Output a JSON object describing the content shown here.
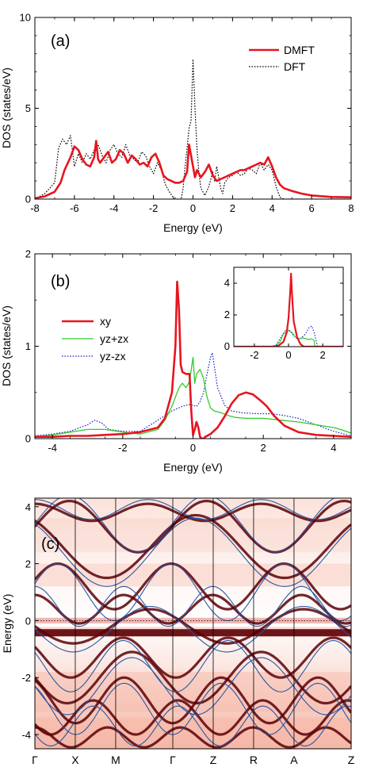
{
  "chart_data": [
    {
      "type": "line",
      "panel_label": "(a)",
      "xlabel": "Energy (eV)",
      "ylabel": "DOS (states/eV)",
      "xlim": [
        -8,
        8
      ],
      "ylim": [
        0,
        10
      ],
      "xticks": [
        -8,
        -6,
        -4,
        -2,
        0,
        2,
        4,
        6,
        8
      ],
      "yticks": [
        0,
        5,
        10
      ],
      "legend_position": "top-right",
      "series": [
        {
          "name": "DMFT",
          "color": "#e8141e",
          "style": "solid",
          "x": [
            -8,
            -7.5,
            -7,
            -6.7,
            -6.5,
            -6.2,
            -6.0,
            -5.8,
            -5.6,
            -5.4,
            -5.2,
            -5.0,
            -4.9,
            -4.8,
            -4.7,
            -4.5,
            -4.3,
            -4.1,
            -3.9,
            -3.7,
            -3.5,
            -3.3,
            -3.1,
            -2.9,
            -2.7,
            -2.5,
            -2.3,
            -2.1,
            -1.9,
            -1.7,
            -1.5,
            -1.3,
            -1.1,
            -0.9,
            -0.7,
            -0.5,
            -0.3,
            -0.2,
            -0.1,
            0,
            0.1,
            0.2,
            0.4,
            0.6,
            0.8,
            1.0,
            1.2,
            1.4,
            1.6,
            1.8,
            2.0,
            2.2,
            2.4,
            2.6,
            2.8,
            3.0,
            3.2,
            3.4,
            3.6,
            3.8,
            4.0,
            4.2,
            4.4,
            4.6,
            5.0,
            5.5,
            6.0,
            7.0,
            8.0
          ],
          "y": [
            0.05,
            0.15,
            0.4,
            0.9,
            1.6,
            2.3,
            2.9,
            2.7,
            2.2,
            1.9,
            1.8,
            2.3,
            3.2,
            2.2,
            2.0,
            2.3,
            2.6,
            2.0,
            2.2,
            2.7,
            2.5,
            2.0,
            2.4,
            2.2,
            1.9,
            2.0,
            1.8,
            2.3,
            2.5,
            2.0,
            1.3,
            1.1,
            1.0,
            0.9,
            0.9,
            1.0,
            1.5,
            3.0,
            2.4,
            1.8,
            1.2,
            1.6,
            1.2,
            1.5,
            1.9,
            1.3,
            1.0,
            1.1,
            1.2,
            1.3,
            1.4,
            1.5,
            1.6,
            1.6,
            1.7,
            1.8,
            1.9,
            2.0,
            1.9,
            2.3,
            1.8,
            1.2,
            0.8,
            0.6,
            0.45,
            0.3,
            0.2,
            0.12,
            0.1
          ]
        },
        {
          "name": "DFT",
          "color": "#000000",
          "style": "dotted",
          "x": [
            -8,
            -7.5,
            -7,
            -6.8,
            -6.6,
            -6.4,
            -6.2,
            -6.0,
            -5.8,
            -5.6,
            -5.4,
            -5.2,
            -5.0,
            -4.8,
            -4.6,
            -4.4,
            -4.2,
            -4.0,
            -3.8,
            -3.6,
            -3.4,
            -3.2,
            -3.0,
            -2.8,
            -2.6,
            -2.4,
            -2.2,
            -2.0,
            -1.8,
            -1.6,
            -1.4,
            -1.2,
            -1.0,
            -0.8,
            -0.6,
            -0.5,
            -0.4,
            -0.3,
            -0.2,
            -0.1,
            0,
            0.1,
            0.2,
            0.3,
            0.4,
            0.6,
            0.8,
            1.0,
            1.1,
            1.2,
            1.3,
            1.4,
            1.5,
            1.6,
            1.8,
            2.0,
            2.2,
            2.4,
            2.6,
            2.8,
            3.0,
            3.2,
            3.4,
            3.6,
            3.8,
            4.0,
            4.2,
            4.4,
            4.6,
            8.0
          ],
          "y": [
            0,
            0.3,
            0.9,
            2.8,
            3.3,
            3.0,
            3.5,
            1.8,
            2.5,
            2.0,
            2.5,
            2.2,
            2.7,
            3.0,
            2.4,
            2.0,
            2.7,
            3.0,
            2.5,
            2.3,
            3.0,
            2.4,
            2.2,
            2.0,
            2.6,
            2.4,
            1.8,
            1.4,
            2.0,
            1.6,
            0.8,
            0.4,
            0.1,
            0.0,
            0.0,
            0.6,
            1.8,
            2.8,
            3.9,
            4.3,
            7.7,
            5.0,
            2.8,
            1.4,
            0.6,
            0.2,
            0.7,
            1.5,
            1.0,
            1.8,
            1.2,
            0.6,
            0.3,
            0.9,
            1.2,
            1.3,
            1.5,
            1.3,
            1.4,
            1.7,
            1.6,
            1.4,
            2.0,
            1.6,
            1.9,
            1.6,
            0.7,
            0.1,
            0.0,
            0.0
          ]
        }
      ]
    },
    {
      "type": "line",
      "panel_label": "(b)",
      "xlabel": "Energy (eV)",
      "ylabel": "DOS (states/eV)",
      "xlim": [
        -4.5,
        4.5
      ],
      "ylim": [
        0,
        2
      ],
      "xticks": [
        -4,
        -2,
        0,
        2,
        4
      ],
      "yticks": [
        0,
        1,
        2
      ],
      "legend_position": "middle-left",
      "series": [
        {
          "name": "xy",
          "color": "#e8141e",
          "style": "solid",
          "x": [
            -4.5,
            -4,
            -3.5,
            -3,
            -2.5,
            -2,
            -1.5,
            -1,
            -0.8,
            -0.6,
            -0.5,
            -0.45,
            -0.4,
            -0.35,
            -0.3,
            -0.2,
            -0.1,
            -0.05,
            0,
            0.05,
            0.1,
            0.15,
            0.2,
            0.25,
            0.3,
            0.35,
            0.5,
            0.7,
            0.9,
            1.1,
            1.3,
            1.5,
            1.7,
            1.9,
            2.1,
            2.3,
            2.6,
            3.0,
            3.5,
            4.0,
            4.5
          ],
          "y": [
            0.02,
            0.02,
            0.03,
            0.03,
            0.04,
            0.05,
            0.07,
            0.12,
            0.22,
            0.5,
            1.0,
            1.7,
            1.4,
            0.8,
            0.72,
            0.7,
            0.7,
            0.3,
            0.04,
            0.1,
            0.18,
            0.12,
            0.02,
            0.0,
            0.0,
            0.02,
            0.05,
            0.12,
            0.24,
            0.38,
            0.47,
            0.5,
            0.48,
            0.42,
            0.35,
            0.25,
            0.14,
            0.07,
            0.04,
            0.03,
            0.02
          ]
        },
        {
          "name": "yz+zx",
          "color": "#2ecc2e",
          "style": "solid",
          "x": [
            -4.5,
            -4,
            -3.5,
            -3,
            -2.5,
            -2,
            -1.5,
            -1,
            -0.8,
            -0.6,
            -0.4,
            -0.3,
            -0.2,
            -0.1,
            0,
            0.05,
            0.1,
            0.2,
            0.3,
            0.4,
            0.5,
            0.6,
            0.8,
            1.0,
            1.2,
            1.5,
            2.0,
            2.5,
            3.0,
            3.5,
            4.0,
            4.2,
            4.5
          ],
          "y": [
            0.02,
            0.04,
            0.07,
            0.1,
            0.1,
            0.07,
            0.05,
            0.1,
            0.2,
            0.35,
            0.55,
            0.6,
            0.55,
            0.62,
            0.88,
            0.6,
            0.7,
            0.75,
            0.65,
            0.45,
            0.33,
            0.3,
            0.28,
            0.25,
            0.23,
            0.22,
            0.22,
            0.2,
            0.18,
            0.15,
            0.12,
            0.1,
            0.06
          ]
        },
        {
          "name": "yz-zx",
          "color": "#2222cc",
          "style": "dotted",
          "x": [
            -4.5,
            -4,
            -3.5,
            -3,
            -2.8,
            -2.6,
            -2.4,
            -2,
            -1.5,
            -1,
            -0.6,
            -0.3,
            -0.1,
            0,
            0.1,
            0.2,
            0.3,
            0.4,
            0.5,
            0.55,
            0.6,
            0.7,
            0.9,
            1.1,
            1.4,
            1.8,
            2.2,
            2.6,
            3.0,
            3.5,
            4.0,
            4.5
          ],
          "y": [
            0.03,
            0.05,
            0.08,
            0.15,
            0.2,
            0.17,
            0.1,
            0.08,
            0.08,
            0.2,
            0.3,
            0.35,
            0.37,
            0.36,
            0.35,
            0.4,
            0.5,
            0.7,
            0.88,
            0.93,
            0.8,
            0.55,
            0.36,
            0.3,
            0.28,
            0.27,
            0.27,
            0.25,
            0.22,
            0.15,
            0.08,
            0.03
          ]
        }
      ],
      "inset": {
        "xlim": [
          -3.2,
          3.2
        ],
        "ylim": [
          0,
          5
        ],
        "xticks": [
          -2,
          0,
          2
        ],
        "yticks": [
          0,
          2,
          4
        ],
        "series": [
          {
            "name": "xy",
            "color": "#e8141e",
            "style": "solid",
            "x": [
              -3.2,
              -1,
              -0.6,
              -0.3,
              -0.1,
              0,
              0.1,
              0.15,
              0.2,
              0.3,
              0.5,
              0.7,
              0.9,
              3.2
            ],
            "y": [
              0,
              0,
              0.05,
              0.3,
              0.9,
              1.8,
              3.5,
              4.6,
              3.4,
              1.6,
              0.6,
              0.15,
              0.0,
              0.0
            ]
          },
          {
            "name": "yz+zx",
            "color": "#2ecc2e",
            "style": "solid",
            "x": [
              -3.2,
              -0.8,
              -0.5,
              -0.3,
              -0.1,
              0,
              0.2,
              0.4,
              0.6,
              0.8,
              1.0,
              1.2,
              1.3,
              1.5,
              1.55,
              3.2
            ],
            "y": [
              0,
              0,
              0.3,
              0.8,
              0.95,
              1.0,
              0.9,
              0.6,
              0.5,
              0.55,
              0.5,
              0.45,
              0.5,
              0.4,
              0.0,
              0.0
            ]
          },
          {
            "name": "yz-zx",
            "color": "#2222cc",
            "style": "dotted",
            "x": [
              -3.2,
              -0.8,
              -0.5,
              -0.2,
              0,
              0.3,
              0.6,
              0.8,
              1.0,
              1.2,
              1.35,
              1.5,
              1.7,
              3.2
            ],
            "y": [
              0,
              0,
              0.5,
              1.0,
              1.1,
              0.7,
              0.4,
              0.6,
              0.8,
              1.2,
              1.3,
              0.9,
              0.0,
              0.0
            ]
          }
        ]
      }
    },
    {
      "type": "heatmap",
      "panel_label": "(c)",
      "ylabel": "Energy (eV)",
      "ylim": [
        -4.5,
        4.3
      ],
      "yticks": [
        -4,
        -2,
        0,
        2,
        4
      ],
      "kpath_labels": [
        "Γ",
        "X",
        "M",
        "Γ",
        "Z",
        "R",
        "A",
        "Z"
      ],
      "kpath_positions": [
        0,
        1,
        2,
        3.414,
        4.414,
        5.414,
        6.414,
        7.828
      ],
      "colormap": [
        "#ffffff",
        "#f7b8a6",
        "#d9342b",
        "#5a0007"
      ],
      "band_line_color": "#1f4fa0",
      "reference_line": 0
    }
  ]
}
